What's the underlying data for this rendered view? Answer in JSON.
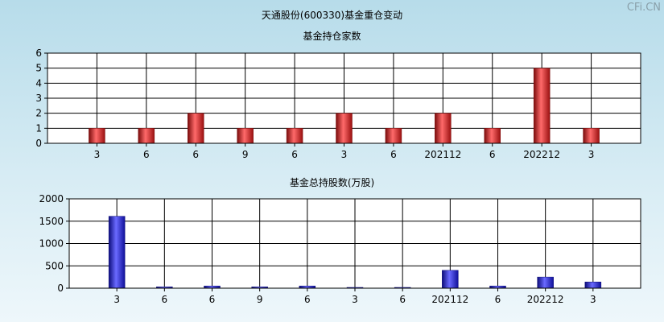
{
  "page": {
    "title": "天通股份(600330)基金重仓变动",
    "watermark": "CFi.CN"
  },
  "chart_data": [
    {
      "type": "bar",
      "title": "基金持仓家数",
      "categories": [
        "3",
        "6",
        "6",
        "9",
        "6",
        "3",
        "6",
        "202112",
        "6",
        "202212",
        "3"
      ],
      "values": [
        1,
        1,
        2,
        1,
        1,
        2,
        1,
        2,
        1,
        5,
        1
      ],
      "ylim": [
        0,
        6
      ],
      "yticks": [
        "0",
        "1",
        "2",
        "3",
        "4",
        "5",
        "6"
      ],
      "bar_color": "#d42424",
      "grid": true
    },
    {
      "type": "bar",
      "title": "基金总持股数(万股)",
      "categories": [
        "3",
        "6",
        "6",
        "9",
        "6",
        "3",
        "6",
        "202112",
        "6",
        "202212",
        "3"
      ],
      "values": [
        1610,
        30,
        50,
        30,
        50,
        15,
        15,
        400,
        50,
        250,
        140
      ],
      "ylim": [
        0,
        2000
      ],
      "yticks": [
        "0",
        "500",
        "1000",
        "1500",
        "2000"
      ],
      "bar_color": "#2424d4",
      "grid": true
    }
  ]
}
